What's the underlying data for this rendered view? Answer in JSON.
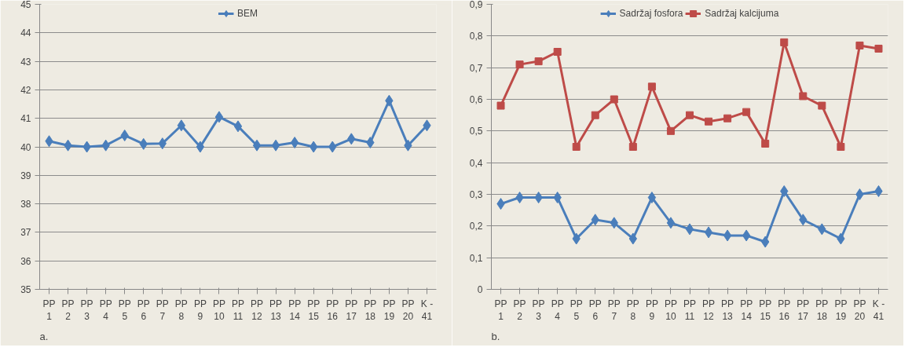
{
  "chart_data": [
    {
      "type": "line",
      "categories": [
        "PP 1",
        "PP 2",
        "PP 3",
        "PP 4",
        "PP 5",
        "PP 6",
        "PP 7",
        "PP 8",
        "PP 9",
        "PP 10",
        "PP 11",
        "PP 12",
        "PP 13",
        "PP 14",
        "PP 15",
        "PP 16",
        "PP 17",
        "PP 18",
        "PP 19",
        "PP 20",
        "K - 41"
      ],
      "series": [
        {
          "name": "BEM",
          "color": "#4a7ebb",
          "marker": "diamond",
          "values": [
            40.2,
            40.05,
            40.0,
            40.05,
            40.4,
            40.1,
            40.12,
            40.75,
            40.0,
            41.05,
            40.72,
            40.05,
            40.05,
            40.15,
            40.0,
            40.0,
            40.28,
            40.15,
            41.62,
            40.05,
            40.75
          ]
        }
      ],
      "ylim": [
        35,
        45
      ],
      "yticks": [
        35,
        36,
        37,
        38,
        39,
        40,
        41,
        42,
        43,
        44,
        45
      ],
      "grid": "y",
      "legend": "top",
      "annotations": [
        "a."
      ]
    },
    {
      "type": "line",
      "categories": [
        "PP 1",
        "PP 2",
        "PP 3",
        "PP 4",
        "PP 5",
        "PP 6",
        "PP 7",
        "PP 8",
        "PP 9",
        "PP 10",
        "PP 11",
        "PP 12",
        "PP 13",
        "PP 14",
        "PP 15",
        "PP 16",
        "PP 17",
        "PP 18",
        "PP 19",
        "PP 20",
        "K - 41"
      ],
      "series": [
        {
          "name": "Sadržaj fosfora",
          "color": "#4a7ebb",
          "marker": "diamond",
          "values": [
            0.27,
            0.29,
            0.29,
            0.29,
            0.16,
            0.22,
            0.21,
            0.16,
            0.29,
            0.21,
            0.19,
            0.18,
            0.17,
            0.17,
            0.15,
            0.31,
            0.22,
            0.19,
            0.16,
            0.3,
            0.31
          ]
        },
        {
          "name": "Sadržaj kalcijuma",
          "color": "#be4b48",
          "marker": "square",
          "values": [
            0.58,
            0.71,
            0.72,
            0.75,
            0.45,
            0.55,
            0.6,
            0.45,
            0.64,
            0.5,
            0.55,
            0.53,
            0.54,
            0.56,
            0.46,
            0.78,
            0.61,
            0.58,
            0.45,
            0.77,
            0.76
          ]
        }
      ],
      "ylim": [
        0,
        0.9
      ],
      "yticks": [
        0,
        {
          "value": 0.1,
          "label": "0,1"
        },
        {
          "value": 0.2,
          "label": "0,2"
        },
        {
          "value": 0.3,
          "label": "0,3"
        },
        {
          "value": 0.4,
          "label": "0,4"
        },
        {
          "value": 0.5,
          "label": "0,5"
        },
        {
          "value": 0.6,
          "label": "0,6"
        },
        {
          "value": 0.7,
          "label": "0,7"
        },
        {
          "value": 0.8,
          "label": "0,8"
        },
        {
          "value": 0.9,
          "label": "0,9"
        }
      ],
      "grid": "y",
      "legend": "top",
      "annotations": [
        "b."
      ]
    }
  ]
}
